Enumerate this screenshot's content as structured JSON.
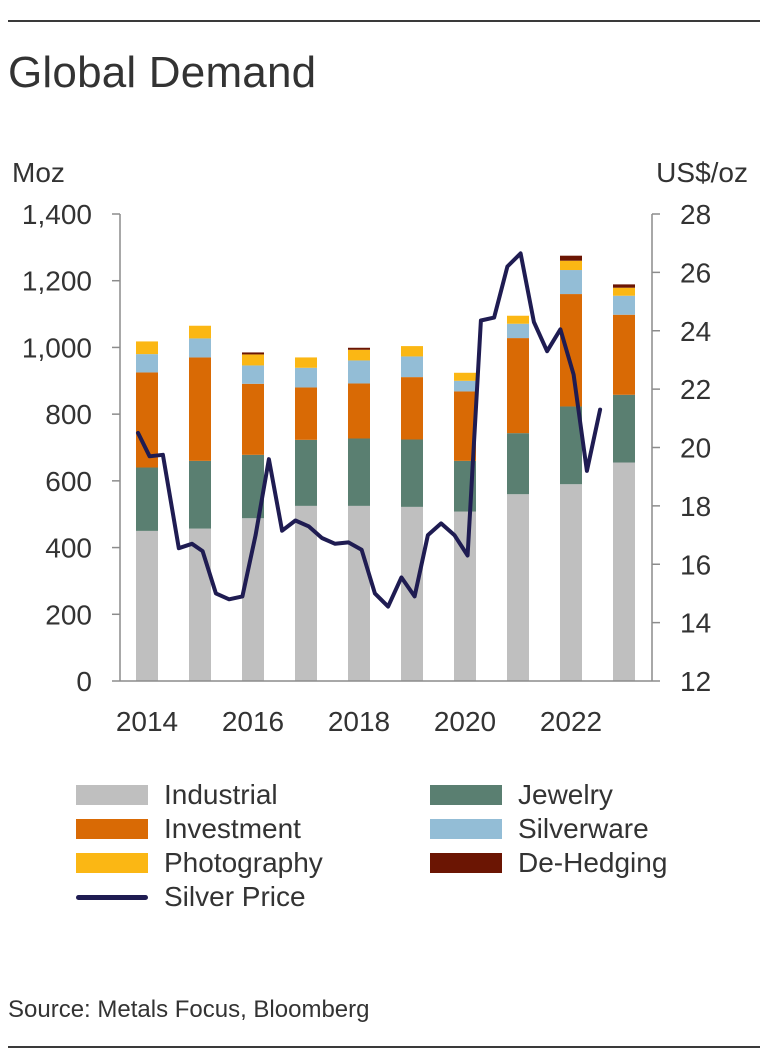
{
  "title": "Global Demand",
  "source": "Source: Metals Focus, Bloomberg",
  "colors": {
    "Industrial": "#bfbfbf",
    "Jewelry": "#5a7f71",
    "Investment": "#d96a05",
    "Silverware": "#93bdd6",
    "Photography": "#fbb714",
    "De-Hedging": "#6b1503",
    "Silver Price": "#1f1c52",
    "axis": "#8c8c8c",
    "text": "#333333"
  },
  "chart_data": {
    "type": "bar",
    "stacked": true,
    "grid": false,
    "legend_position": "bottom",
    "left_axis_unit": "Moz",
    "right_axis_unit": "US$/oz",
    "left_ylim": [
      0,
      1400
    ],
    "left_ticks": [
      "0",
      "200",
      "400",
      "600",
      "800",
      "1,000",
      "1,200",
      "1,400"
    ],
    "right_ylim": [
      12,
      28
    ],
    "right_ticks": [
      "12",
      "14",
      "16",
      "18",
      "20",
      "22",
      "24",
      "26",
      "28"
    ],
    "x_tick_labels": [
      "2014",
      "2016",
      "2018",
      "2020",
      "2022"
    ],
    "categories": [
      "2014",
      "2015",
      "2016",
      "2017",
      "2018",
      "2019",
      "2020",
      "2021",
      "2022",
      "2023"
    ],
    "series": [
      {
        "name": "Industrial",
        "values": [
          450,
          457,
          488,
          525,
          525,
          522,
          508,
          560,
          590,
          655
        ]
      },
      {
        "name": "Jewelry",
        "values": [
          190,
          203,
          190,
          198,
          202,
          202,
          152,
          183,
          233,
          203
        ]
      },
      {
        "name": "Investment",
        "values": [
          285,
          310,
          213,
          157,
          165,
          187,
          208,
          285,
          337,
          240
        ]
      },
      {
        "name": "Silverware",
        "values": [
          55,
          57,
          55,
          59,
          69,
          62,
          32,
          43,
          72,
          57
        ]
      },
      {
        "name": "Photography",
        "values": [
          38,
          38,
          33,
          31,
          32,
          31,
          24,
          24,
          28,
          24
        ]
      },
      {
        "name": "De-Hedging",
        "values": [
          0,
          0,
          6,
          0,
          6,
          0,
          0,
          0,
          15,
          10
        ]
      }
    ],
    "line_series": {
      "name": "Silver Price",
      "axis": "right",
      "points": [
        [
          2013.83,
          20.5
        ],
        [
          2014.05,
          19.7
        ],
        [
          2014.3,
          19.75
        ],
        [
          2014.6,
          16.55
        ],
        [
          2014.85,
          16.7
        ],
        [
          2015.05,
          16.45
        ],
        [
          2015.3,
          15.0
        ],
        [
          2015.55,
          14.8
        ],
        [
          2015.8,
          14.9
        ],
        [
          2016.05,
          17.0
        ],
        [
          2016.3,
          19.6
        ],
        [
          2016.55,
          17.15
        ],
        [
          2016.8,
          17.5
        ],
        [
          2017.05,
          17.3
        ],
        [
          2017.3,
          16.9
        ],
        [
          2017.55,
          16.7
        ],
        [
          2017.8,
          16.75
        ],
        [
          2018.05,
          16.5
        ],
        [
          2018.3,
          15.0
        ],
        [
          2018.55,
          14.55
        ],
        [
          2018.8,
          15.55
        ],
        [
          2019.05,
          14.9
        ],
        [
          2019.3,
          17.0
        ],
        [
          2019.55,
          17.4
        ],
        [
          2019.8,
          17.0
        ],
        [
          2020.05,
          16.3
        ],
        [
          2020.3,
          24.35
        ],
        [
          2020.55,
          24.45
        ],
        [
          2020.8,
          26.2
        ],
        [
          2021.05,
          26.65
        ],
        [
          2021.3,
          24.3
        ],
        [
          2021.55,
          23.3
        ],
        [
          2021.8,
          24.05
        ],
        [
          2022.05,
          22.5
        ],
        [
          2022.3,
          19.2
        ],
        [
          2022.55,
          21.3
        ]
      ]
    }
  }
}
